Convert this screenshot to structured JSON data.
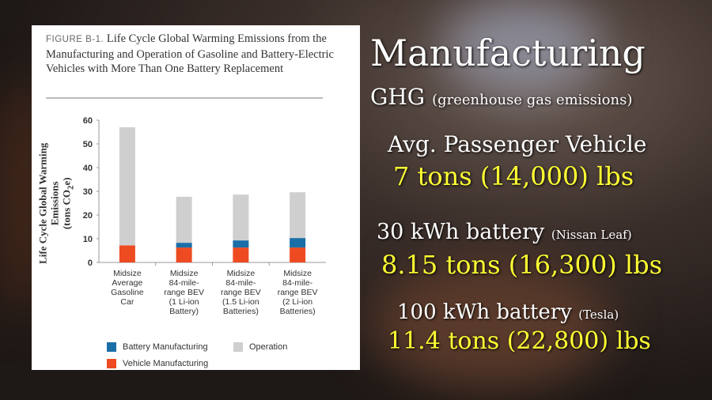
{
  "figure": {
    "label": "FIGURE B-1.",
    "title": "Life Cycle Global Warming Emissions from the Manufacturing and Operation of Gasoline and Battery-Electric Vehicles with More Than One Battery Replacement"
  },
  "chart_data": {
    "type": "bar",
    "stacked": true,
    "title": "Life Cycle Global Warming Emissions from the Manufacturing and Operation of Gasoline and Battery-Electric Vehicles with More Than One Battery Replacement",
    "ylabel": "Life Cycle Global Warming Emissions (tons CO2e)",
    "ylim": [
      0,
      60
    ],
    "yticks": [
      "0",
      "10",
      "20",
      "30",
      "40",
      "50",
      "60"
    ],
    "categories": [
      "Midsize Average Gasoline Car",
      "Midsize 84-mile-range BEV (1 Li-ion Battery)",
      "Midsize 84-mile-range BEV (1.5 Li-ion Batteries)",
      "Midsize 84-mile-range BEV (2 Li-ion Batteries)"
    ],
    "category_lines": [
      [
        "Midsize",
        "Average",
        "Gasoline",
        "Car"
      ],
      [
        "Midsize",
        "84-mile-",
        "range BEV",
        "(1 Li-ion",
        "Battery)"
      ],
      [
        "Midsize",
        "84-mile-",
        "range BEV",
        "(1.5 Li-ion",
        "Batteries)"
      ],
      [
        "Midsize",
        "84-mile-",
        "range BEV",
        "(2 Li-ion",
        "Batteries)"
      ]
    ],
    "series": [
      {
        "name": "Vehicle Manufacturing",
        "color": "#ee4b22",
        "values": [
          7.2,
          6.3,
          6.3,
          6.3
        ]
      },
      {
        "name": "Battery Manufacturing",
        "color": "#1a6fa8",
        "values": [
          0,
          2.0,
          3.0,
          4.0
        ]
      },
      {
        "name": "Operation",
        "color": "#cfcfcf",
        "values": [
          49.8,
          19.4,
          19.3,
          19.3
        ]
      }
    ],
    "legend": "bottom",
    "grid": false
  },
  "overlay": {
    "heading": "Manufacturing",
    "ghg": "GHG",
    "ghg_note": "(greenhouse gas emissions)",
    "items": [
      {
        "label": "Avg. Passenger Vehicle",
        "note": "",
        "value": "7 tons (14,000) lbs"
      },
      {
        "label": "30 kWh battery",
        "note": "(Nissan Leaf)",
        "value": "8.15 tons (16,300) lbs"
      },
      {
        "label": "100 kWh battery",
        "note": "(Tesla)",
        "value": "11.4 tons (22,800) lbs"
      }
    ]
  }
}
